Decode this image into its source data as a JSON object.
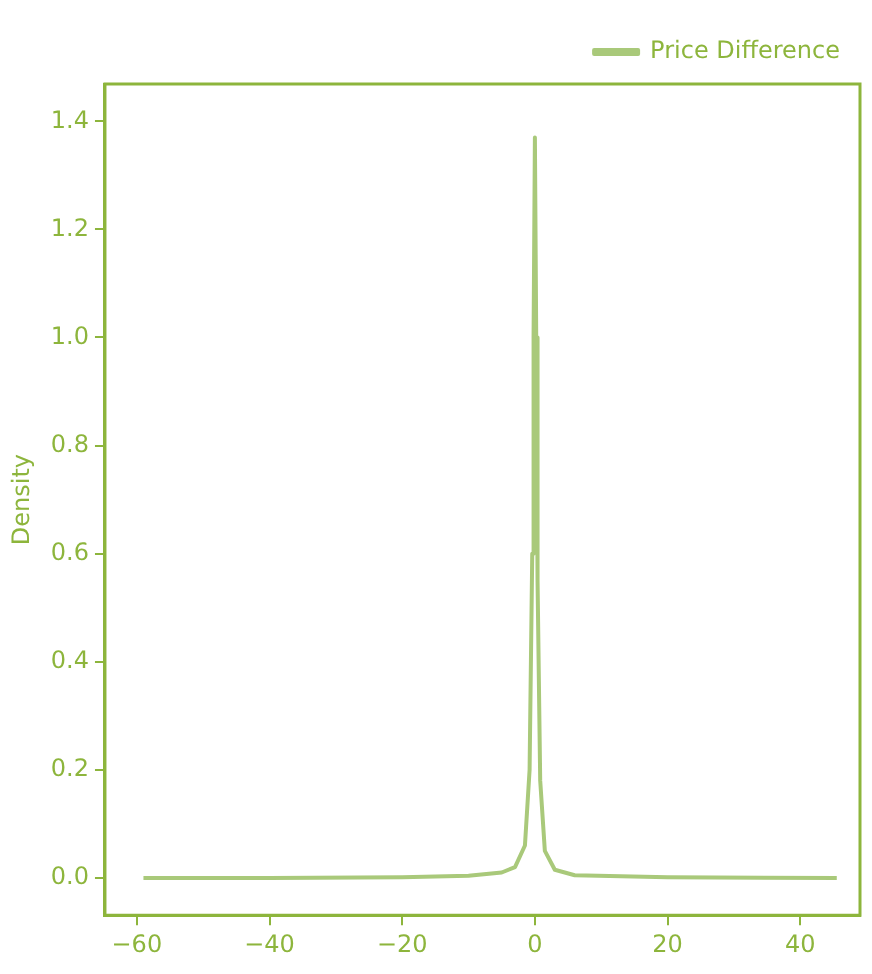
{
  "chart_data": {
    "type": "line",
    "ylabel": "Density",
    "x": [
      -59,
      -40,
      -20,
      -10,
      -5,
      -3,
      -1.5,
      -0.8,
      -0.4,
      -0.2,
      0,
      0.2,
      0.4,
      0.8,
      1.5,
      3,
      6,
      20,
      45.5
    ],
    "series": [
      {
        "name": "Price Difference",
        "color": "#a9c97a",
        "values": [
          0,
          0,
          0.001,
          0.004,
          0.01,
          0.02,
          0.06,
          0.2,
          0.6,
          1.0,
          1.37,
          1.0,
          0.55,
          0.18,
          0.05,
          0.015,
          0.005,
          0.001,
          0
        ]
      }
    ],
    "xlim": [
      -64.8,
      49
    ],
    "xticks": [
      {
        "value": -60,
        "label": "−60"
      },
      {
        "value": -40,
        "label": "−40"
      },
      {
        "value": -20,
        "label": "−20"
      },
      0,
      20,
      40
    ],
    "ylim": [
      -0.069,
      1.469
    ],
    "yticks": [
      {
        "value": 0,
        "label": "0.0"
      },
      {
        "value": 0.2,
        "label": "0.2"
      },
      {
        "value": 0.4,
        "label": "0.4"
      },
      {
        "value": 0.6,
        "label": "0.6"
      },
      {
        "value": 0.8,
        "label": "0.8"
      },
      {
        "value": 1.0,
        "label": "1.0"
      },
      {
        "value": 1.2,
        "label": "1.2"
      },
      {
        "value": 1.4,
        "label": "1.4"
      }
    ],
    "legend": "top right",
    "grid": false,
    "marker": "none",
    "line_style": "solid"
  }
}
